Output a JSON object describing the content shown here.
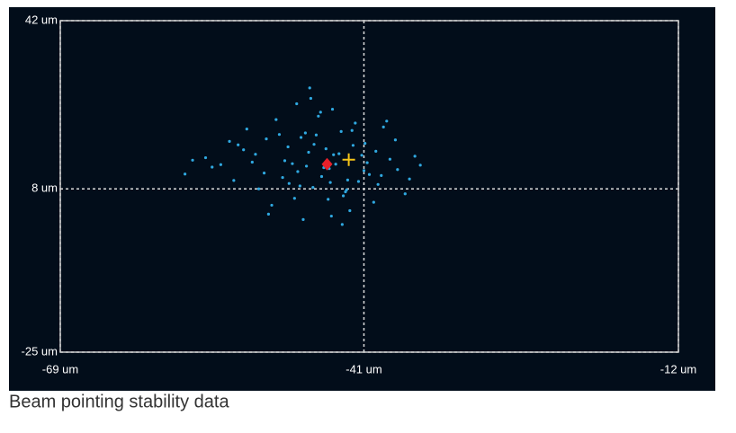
{
  "chart_data": {
    "type": "scatter",
    "xlim": [
      -69,
      -12
    ],
    "ylim": [
      -25,
      42
    ],
    "xticks": [
      {
        "value": -69,
        "label": "-69 um"
      },
      {
        "value": -41,
        "label": "-41 um"
      },
      {
        "value": -12,
        "label": "-12 um"
      }
    ],
    "yticks": [
      {
        "value": -25,
        "label": "-25 um"
      },
      {
        "value": 8,
        "label": "8 um"
      },
      {
        "value": 42,
        "label": "42 um"
      }
    ],
    "grid": "dashed",
    "background": "#020d1a",
    "series": [
      {
        "color": "#2fa8e0",
        "marker": "dot",
        "x": [
          -44.2,
          -46.1,
          -42.5,
          -48.3,
          -40.9,
          -45.7,
          -43.1,
          -50.2,
          -38.6,
          -47.4,
          -41.8,
          -44.9,
          -52.1,
          -39.7,
          -46.8,
          -43.6,
          -49.5,
          -42.0,
          -45.2,
          -37.9,
          -51.3,
          -44.0,
          -47.9,
          -41.2,
          -53.4,
          -40.1,
          -46.3,
          -43.9,
          -48.8,
          -42.7,
          -55.6,
          -36.8,
          -45.9,
          -44.5,
          -50.7,
          -39.2,
          -47.1,
          -42.3,
          -54.2,
          -38.1,
          -46.6,
          -43.3,
          -49.1,
          -41.5,
          -45.4,
          -56.8,
          -37.2,
          -48.0,
          -44.7,
          -51.8,
          -40.5,
          -46.0,
          -42.9,
          -53.0,
          -39.9,
          -47.6,
          -43.0,
          -50.0,
          -41.0,
          -45.0,
          -36.3,
          -52.6,
          -44.3,
          -48.5,
          -42.1,
          -55.0,
          -38.9,
          -46.9,
          -43.8,
          -49.8,
          -40.7,
          -45.6,
          -57.5,
          -35.8,
          -47.2,
          -44.1,
          -51.0,
          -39.4,
          -46.4,
          -42.6
        ],
        "y": [
          12.1,
          15.4,
          9.8,
          13.7,
          17.2,
          8.3,
          19.6,
          11.2,
          14.0,
          6.1,
          21.3,
          10.5,
          15.9,
          8.9,
          18.4,
          13.0,
          4.7,
          16.8,
          22.7,
          11.9,
          13.4,
          2.5,
          9.1,
          14.8,
          17.6,
          5.3,
          12.6,
          24.1,
          19.0,
          7.4,
          14.3,
          10.0,
          26.3,
          16.1,
          8.0,
          20.5,
          11.5,
          3.6,
          12.9,
          17.9,
          1.8,
          15.1,
          22.0,
          9.5,
          18.9,
          13.8,
          7.0,
          16.5,
          12.3,
          20.1,
          10.9,
          28.4,
          6.6,
          9.7,
          15.6,
          13.1,
          0.8,
          18.1,
          11.7,
          23.5,
          14.6,
          16.9,
          5.9,
          10.3,
          19.8,
          12.4,
          21.7,
          8.6,
          14.9,
          2.9,
          13.3,
          17.0,
          11.0,
          12.8,
          25.2,
          9.3,
          15.0,
          10.7,
          19.3,
          7.8
        ]
      },
      {
        "color": "#e8202a",
        "marker": "diamond",
        "x": [
          -44.4
        ],
        "y": [
          13
        ]
      },
      {
        "color": "#f5c518",
        "marker": "plus",
        "x": [
          -42.4
        ],
        "y": [
          13.9
        ]
      }
    ],
    "caption": "Beam pointing stability data"
  }
}
